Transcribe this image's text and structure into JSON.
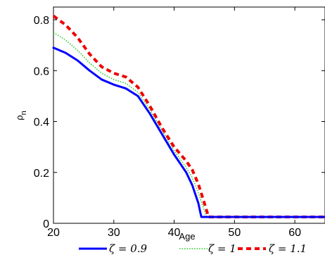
{
  "chart_data": {
    "type": "line",
    "title": "",
    "xlabel": "Age",
    "ylabel_main": "ρ",
    "ylabel_sub": "n",
    "xlim": [
      20,
      65
    ],
    "ylim": [
      0,
      0.85
    ],
    "x_ticks": [
      20,
      30,
      40,
      50,
      60
    ],
    "y_ticks": [
      0,
      0.2,
      0.4,
      0.6,
      0.8
    ],
    "x_tick_labels": [
      "20",
      "30",
      "40",
      "50",
      "60"
    ],
    "y_tick_labels": [
      "0",
      "0.2",
      "0.4",
      "0.6",
      "0.8"
    ],
    "grid": false,
    "legend_position": "bottom",
    "series": [
      {
        "name": "ζ = 0.9",
        "color": "#0000ff",
        "style": "solid",
        "x": [
          20,
          22,
          24,
          26,
          28,
          30,
          32,
          34,
          36,
          38,
          40,
          42,
          43,
          44,
          44.5,
          45,
          50,
          55,
          60,
          65
        ],
        "y": [
          0.69,
          0.67,
          0.64,
          0.6,
          0.565,
          0.545,
          0.53,
          0.5,
          0.43,
          0.35,
          0.27,
          0.2,
          0.15,
          0.08,
          0.025,
          0.025,
          0.025,
          0.025,
          0.025,
          0.025
        ]
      },
      {
        "name": "ζ = 1",
        "color": "#22cc22",
        "style": "dotted",
        "x": [
          20,
          22,
          24,
          26,
          28,
          30,
          32,
          34,
          36,
          38,
          40,
          42,
          43,
          44,
          45,
          45.3,
          50,
          55,
          60,
          65
        ],
        "y": [
          0.75,
          0.72,
          0.68,
          0.63,
          0.59,
          0.565,
          0.55,
          0.515,
          0.445,
          0.365,
          0.285,
          0.22,
          0.18,
          0.12,
          0.05,
          0.025,
          0.025,
          0.025,
          0.025,
          0.025
        ]
      },
      {
        "name": "ζ = 1.1",
        "color": "#ee0000",
        "style": "dashed",
        "x": [
          20,
          22,
          24,
          26,
          28,
          30,
          32,
          34,
          36,
          38,
          40,
          42,
          43,
          44,
          45,
          45.7,
          50,
          55,
          60,
          65
        ],
        "y": [
          0.815,
          0.78,
          0.73,
          0.665,
          0.615,
          0.59,
          0.575,
          0.535,
          0.46,
          0.375,
          0.3,
          0.245,
          0.21,
          0.155,
          0.08,
          0.025,
          0.025,
          0.025,
          0.025,
          0.025
        ]
      }
    ]
  }
}
